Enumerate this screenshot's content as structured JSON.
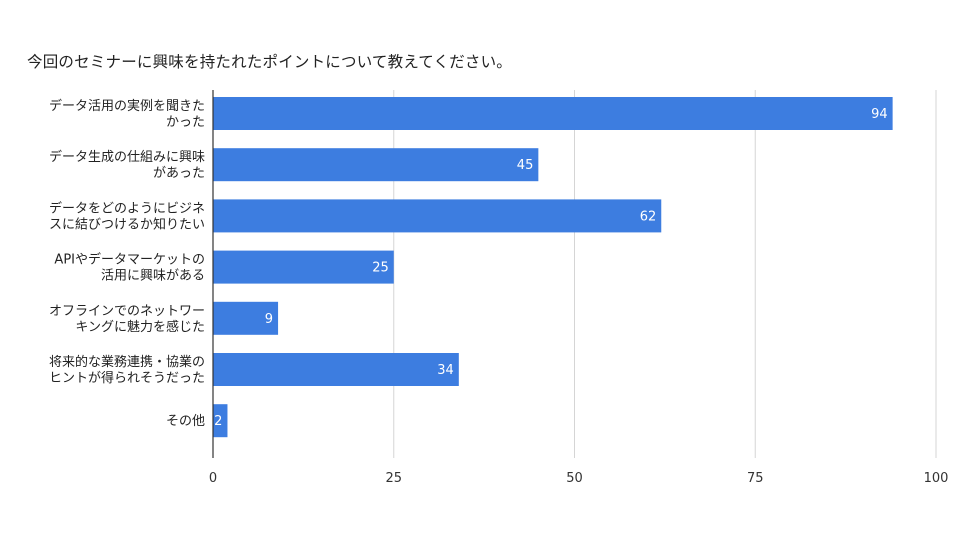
{
  "chart_data": {
    "type": "bar",
    "orientation": "horizontal",
    "title": "今回のセミナーに興味を持たれたポイントについて教えてください。",
    "categories": [
      [
        "データ活用の実例を聞きた",
        "かった"
      ],
      [
        "データ生成の仕組みに興味",
        "があった"
      ],
      [
        "データをどのようにビジネ",
        "スに結びつけるか知りたい"
      ],
      [
        "APIやデータマーケットの",
        "活用に興味がある"
      ],
      [
        "オフラインでのネットワー",
        "キングに魅力を感じた"
      ],
      [
        "将来的な業務連携・協業の",
        "ヒントが得られそうだった"
      ],
      [
        "その他"
      ]
    ],
    "values": [
      94,
      45,
      62,
      25,
      9,
      34,
      2
    ],
    "xlim": [
      0,
      100
    ],
    "xticks": [
      0,
      25,
      50,
      75,
      100
    ],
    "xlabel": "",
    "ylabel": "",
    "grid": true,
    "bar_color": "#3d7de0",
    "grid_color": "#d5d5d5"
  }
}
